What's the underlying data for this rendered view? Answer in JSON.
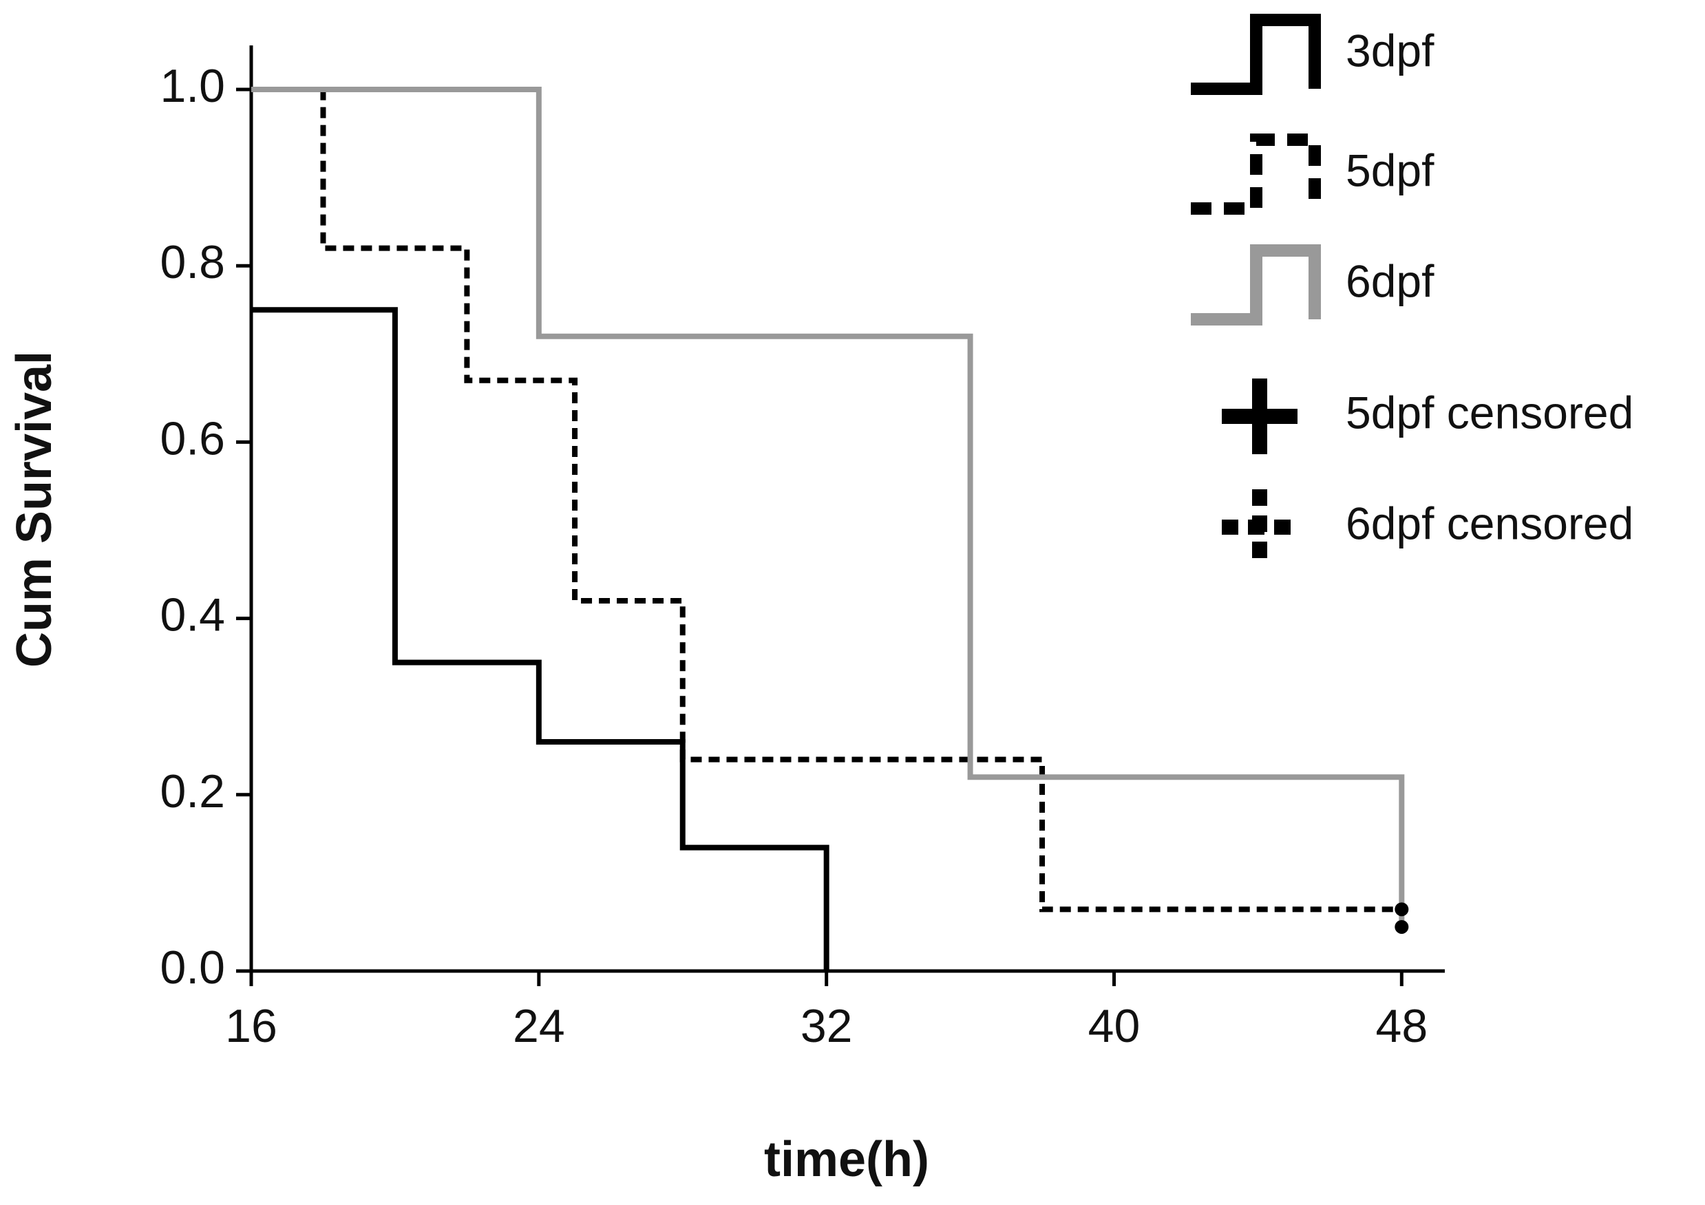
{
  "chart_data": {
    "type": "step",
    "x_label": "time(h)",
    "y_label": "Cum Survival",
    "xlim": [
      16,
      49.2
    ],
    "ylim": [
      0,
      1.05
    ],
    "xticks": [
      16,
      24,
      32,
      40,
      48
    ],
    "yticks": [
      {
        "value": 0,
        "label": "0.0"
      },
      0.2,
      0.4,
      0.6,
      0.8,
      {
        "value": 1,
        "label": "1.0"
      }
    ],
    "series": [
      {
        "name": "3dpf",
        "color": "#000000",
        "style": "solid",
        "x": [
          16,
          20,
          24,
          28,
          32
        ],
        "values": [
          0.75,
          0.35,
          0.26,
          0.14,
          0
        ]
      },
      {
        "name": "5dpf",
        "color": "#000000",
        "style": "dashed",
        "x": [
          16,
          18,
          22,
          25,
          28,
          38,
          48
        ],
        "values": [
          1,
          0.82,
          0.67,
          0.42,
          0.24,
          0.07,
          0.07
        ]
      },
      {
        "name": "6dpf",
        "color": "#999999",
        "style": "solid",
        "x": [
          16,
          24,
          36,
          48
        ],
        "values": [
          1,
          0.72,
          0.22,
          0.05
        ]
      },
      {
        "name": "5dpf censored",
        "color": "#000000",
        "style": "censored-solid",
        "x": [
          48
        ],
        "values": [
          0.07
        ]
      },
      {
        "name": "6dpf censored",
        "color": "#000000",
        "style": "censored-dashed",
        "x": [
          48
        ],
        "values": [
          0.05
        ]
      }
    ]
  }
}
